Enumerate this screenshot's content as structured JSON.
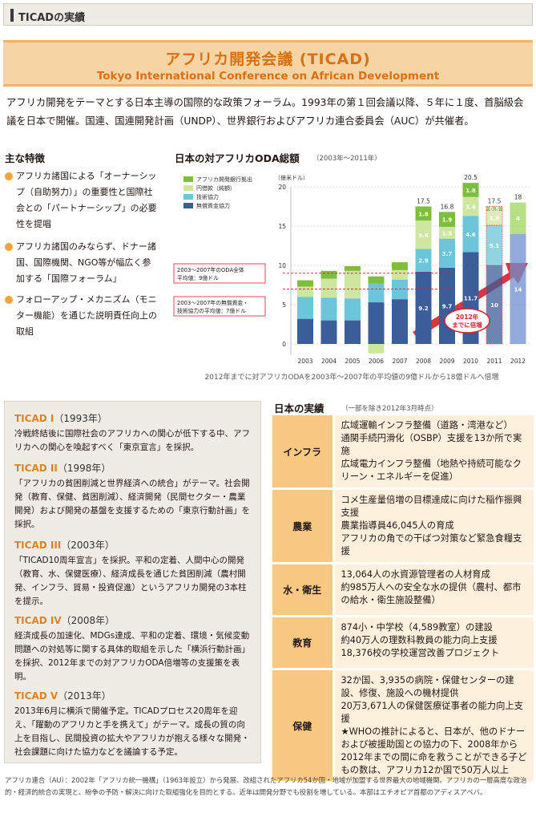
{
  "header": {
    "section": "TICADの実績"
  },
  "banner": {
    "title_ja": "アフリカ開発会議 (TICAD)",
    "title_en": "Tokyo International Conference on African Development"
  },
  "intro": "アフリカ開発をテーマとする日本主導の国際的な政策フォーラム。1993年の第１回会議以降、５年に１度、首脳級会議を日本で開催。国連、国連開発計画（UNDP）、世界銀行およびアフリカ連合委員会（AUC）が共催者。",
  "features": {
    "title": "主な特徴",
    "items": [
      "アフリカ諸国による「オーナーシップ（自助努力）」の重要性と国際社会との「パートナーシップ」の必要性を提唱",
      "アフリカ諸国のみならず、ドナー諸国、国際機関、NGO等が幅広く参加する「国際フォーラム」",
      "フォローアップ・メカニズム（モニター機能）を通じた説明責任向上の取組"
    ]
  },
  "colors": {
    "accent": "#e2821f",
    "grant_bank": "#7fbe3c",
    "yen": "#cfe6a0",
    "tech": "#6cc5d8",
    "grant": "#3b5d9a",
    "arrow": "#d6202a"
  },
  "chart_data": {
    "type": "bar",
    "title": "日本の対アフリカODA総額",
    "subtitle": "（2003年〜2011年）",
    "ylabel": "（億米ドル）",
    "ylim": [
      0,
      20
    ],
    "yticks": [
      0,
      5,
      10,
      15,
      20
    ],
    "categories": [
      "2003",
      "2004",
      "2005",
      "2006",
      "2007",
      "2008",
      "2009",
      "2010",
      "2011",
      "2012"
    ],
    "series": [
      {
        "name": "無償資金協力",
        "values": [
          3.2,
          3.0,
          3.0,
          5.3,
          5.7,
          9.2,
          9.7,
          11.7,
          10,
          14
        ]
      },
      {
        "name": "技術協力",
        "values": [
          2.8,
          2.9,
          2.8,
          2.4,
          2.5,
          2.9,
          3.7,
          4.6,
          5.1,
          0
        ]
      },
      {
        "name": "円借款（純額）",
        "values": [
          1.3,
          2.4,
          3.5,
          -1.2,
          1.2,
          3.6,
          1.5,
          2.4,
          1.9,
          4
        ]
      },
      {
        "name": "アフリカ開発銀行拠出",
        "values": [
          0.8,
          1.0,
          0.6,
          0.9,
          1.0,
          1.8,
          1.9,
          1.8,
          0.5,
          0
        ]
      }
    ],
    "totals": [
      "",
      "",
      "",
      "",
      "",
      "17.5",
      "16.8",
      "20.5",
      "17.5",
      "18"
    ],
    "labels": {
      "無償資金協力": [
        "",
        "",
        "",
        "",
        "",
        "9.2",
        "9.7",
        "11.7",
        "10",
        "14"
      ],
      "技術協力": [
        "",
        "",
        "",
        "",
        "",
        "2.9",
        "3.7",
        "4.6",
        "5.1",
        ""
      ],
      "円借款（純額）": [
        "",
        "",
        "",
        "",
        "",
        "3.6",
        "1.5",
        "2.4",
        "1.9",
        "4"
      ],
      "アフリカ開発銀行拠出": [
        "",
        "",
        "",
        "",
        "",
        "1.8",
        "1.9",
        "1.8",
        "0.5",
        ""
      ]
    },
    "annotations": [
      "2003～2007年のODA全体平均値：9億ドル",
      "2003～2007年の無償資金・技術協力の平均値：7億ドル",
      "2012年までに倍増"
    ],
    "note": "2012年までに対アフリカODAを2003年～2007年の平均値の9億ドルから18億ドルへ倍増"
  },
  "history": [
    {
      "name": "TICAD I",
      "year": "（1993年）",
      "desc": "冷戦終結後に国際社会のアフリカへの関心が低下する中、アフリカへの関心を喚起すべく「東京宣言」を採択。"
    },
    {
      "name": "TICAD II",
      "year": "（1998年）",
      "desc": "「アフリカの貧困削減と世界経済への統合」がテーマ。社会開発（教育、保健、貧困削減）、経済開発（民間セクター・農業開発）および開発の基盤を支援するための「東京行動計画」を採択。"
    },
    {
      "name": "TICAD III",
      "year": "（2003年）",
      "desc": "「TICAD10周年宣言」を採択。平和の定着、人間中心の開発（教育、水、保健医療）、経済成長を通じた貧困削減（農村開発、インフラ、貿易・投資促進）というアフリカ開発の3本柱を提示。"
    },
    {
      "name": "TICAD IV",
      "year": "（2008年）",
      "desc": "経済成長の加速化、MDGs達成、平和の定着、環境・気候変動問題への対処等に関する具体的取組を示した「横浜行動計画」を採択、2012年までの対アフリカODA倍増等の支援策を表明。"
    },
    {
      "name": "TICAD V",
      "year": "（2013年）",
      "desc": "2013年6月に横浜で開催予定。TICADプロセス20周年を迎え、「躍動のアフリカと手を携えて」がテーマ。成長の質の向上を目指し、民間投資の拡大やアフリカが抱える様々な開発・社会課題に向けた協力などを議論する予定。"
    }
  ],
  "results": {
    "title": "日本の実績",
    "subtitle": "（一部を除き2012年3月時点）",
    "rows": [
      {
        "cat": "インフラ",
        "text": "広域運輸インフラ整備（道路・湾港など）\n通関手続円滑化（OSBP）支援を13か所で実施\n広域電力インフラ整備（地熱や持続可能なクリーン・エネルギーを促進）"
      },
      {
        "cat": "農業",
        "text": "コメ生産量倍増の目標達成に向けた稲作振興支援\n農業指導員46,045人の育成\nアフリカの角での干ばつ対策など緊急食糧支援"
      },
      {
        "cat": "水・衛生",
        "text": "13,064人の水資源管理者の人材育成\n約985万人への安全な水の提供（農村、都市の給水・衛生施設整備）"
      },
      {
        "cat": "教育",
        "text": "874小・中学校（4,589教室）の建設\n約40万人の理数科教員の能力向上支援\n18,376校の学校運営改善プロジェクト"
      },
      {
        "cat": "保健",
        "text": "32か国、3,935の病院・保健センターの建設、修復、施設への機材提供\n20万3,671人の保健医療従事者の能力向上支援\n★WHOの推計によると、日本が、他のドナーおよび被援助国との協力の下、2008年から2012年までの間に命を救うことができる子どもの数は、アフリカ12か国で50万人以上"
      }
    ]
  },
  "footnote": "アフリカ連合（AU）：2002年「アフリカ統一機構」（1963年設立）から発展、改組されたアフリカ54か国・地域が加盟する世界最大の地域機関。アフリカの一層高度な政治的・経済的統合の実現と、紛争の予防・解決に向けた取組強化を目的とする。近年は開発分野でも役割を増している。本部はエチオピア首都のアディスアベバ。"
}
